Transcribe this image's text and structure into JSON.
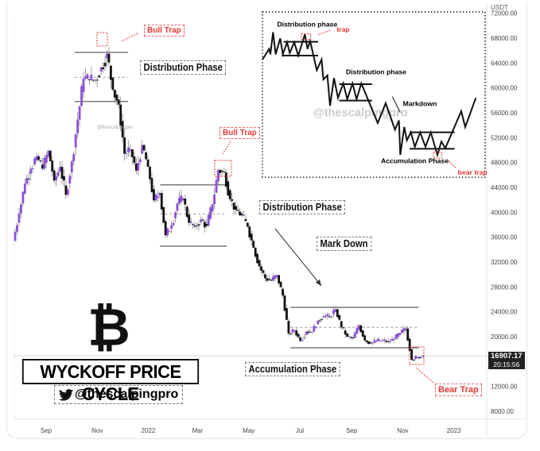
{
  "chart_data": {
    "type": "candlestick",
    "currency_label": "USDT",
    "ylim": [
      6000,
      72000
    ],
    "y_ticks": [
      72000,
      68000,
      64000,
      60000,
      56000,
      52000,
      48000,
      44000,
      40000,
      36000,
      32000,
      28000,
      24000,
      20000,
      12000,
      8000
    ],
    "x_ticks": [
      {
        "label": "Sep",
        "date": "2021-09-01"
      },
      {
        "label": "Nov",
        "date": "2021-11-01"
      },
      {
        "label": "2022",
        "date": "2022-01-01"
      },
      {
        "label": "Mar",
        "date": "2022-03-01"
      },
      {
        "label": "May",
        "date": "2022-05-01"
      },
      {
        "label": "Jul",
        "date": "2022-07-01"
      },
      {
        "label": "Sep",
        "date": "2022-09-01"
      },
      {
        "label": "Nov",
        "date": "2022-11-01"
      },
      {
        "label": "2023",
        "date": "2023-01-01"
      }
    ],
    "start_date": "2021-07-26",
    "interval_days": 7,
    "open_first": 35400,
    "closes": [
      39800,
      44600,
      47000,
      49000,
      47000,
      49900,
      45100,
      47300,
      42800,
      48200,
      54900,
      61500,
      61300,
      61300,
      63300,
      65500,
      59700,
      57300,
      49400,
      50100,
      46700,
      50800,
      47300,
      41900,
      43100,
      36300,
      37900,
      41400,
      42200,
      38300,
      37700,
      38800,
      37800,
      41300,
      46800,
      46400,
      42100,
      40400,
      39500,
      37700,
      34300,
      31300,
      29400,
      29000,
      29900,
      26600,
      20500,
      21000,
      19300,
      20800,
      20800,
      22600,
      23300,
      23200,
      24400,
      21500,
      20000,
      19800,
      21800,
      19400,
      18900,
      19300,
      19400,
      19200,
      19600,
      20600,
      21300,
      16300,
      16700,
      16907.17
    ],
    "current_price": "16907.17",
    "countdown": "20:15:56",
    "levels": [
      {
        "from": "2021-10-05",
        "to": "2021-12-08",
        "price": 65700,
        "style": "solid"
      },
      {
        "from": "2021-10-05",
        "to": "2021-12-08",
        "price": 61700,
        "style": "dashed"
      },
      {
        "from": "2021-10-05",
        "to": "2021-12-08",
        "price": 57800,
        "style": "solid"
      },
      {
        "from": "2022-01-15",
        "to": "2022-04-05",
        "price": 44400,
        "style": "solid"
      },
      {
        "from": "2022-01-15",
        "to": "2022-04-05",
        "price": 39700,
        "style": "dashed"
      },
      {
        "from": "2022-01-15",
        "to": "2022-04-05",
        "price": 34550,
        "style": "solid"
      },
      {
        "from": "2022-06-20",
        "to": "2022-11-20",
        "price": 24700,
        "style": "solid"
      },
      {
        "from": "2022-06-20",
        "to": "2022-11-20",
        "price": 21500,
        "style": "dashed"
      },
      {
        "from": "2022-06-20",
        "to": "2022-11-20",
        "price": 18200,
        "style": "solid"
      }
    ],
    "colors": {
      "up": "#8a4fd6",
      "down": "#111111",
      "annotation": "#e53935"
    }
  },
  "annotations": {
    "bull_trap_1": "Bull Trap",
    "distribution_1": "Distribution Phase",
    "bull_trap_2": "Bull Trap",
    "distribution_2": "Distribution Phase",
    "mark_down": "Mark Down",
    "accumulation": "Accumulation Phase",
    "bear_trap": "Bear Trap",
    "watermark": "@thescalpingpro"
  },
  "branding": {
    "logo_symbol": "₿",
    "title": "WYCKOFF PRICE CYCLE",
    "handle": "@thescalpingpro",
    "handle_icon": "twitter-bird-icon"
  },
  "inset": {
    "distribution_1": "Distribution phase",
    "trap": "trap",
    "distribution_2": "Distribution phase",
    "markdown": "Markdown",
    "accumulation": "Accumulation Phase",
    "bear_trap": "bear trap",
    "watermark": "@thescalpingpro"
  }
}
